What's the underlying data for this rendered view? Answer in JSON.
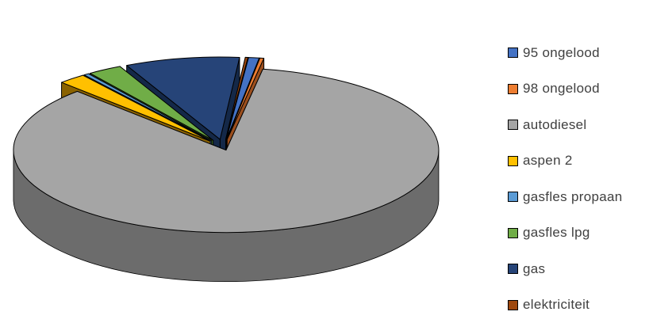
{
  "chart_data": {
    "type": "pie",
    "title": "",
    "three_d": true,
    "exploded": true,
    "legend_position": "right",
    "categories": [
      "95 ongelood",
      "98 ongelood",
      "autodiesel",
      "aspen 2",
      "gasfles propaan",
      "gasfles lpg",
      "gas",
      "elektriciteit"
    ],
    "values": [
      0.8,
      0.3,
      84.9,
      2.1,
      0.4,
      2.6,
      8.7,
      0.2
    ],
    "units": "percent (estimated)",
    "colors": [
      "#4472c4",
      "#ed7d31",
      "#a5a5a5",
      "#ffc000",
      "#5b9bd5",
      "#70ad47",
      "#264478",
      "#9e480e"
    ],
    "side_colors": [
      "#2a4a88",
      "#9c4f1e",
      "#6c6c6c",
      "#8a6200",
      "#3a6b9a",
      "#3e6f22",
      "#142848",
      "#5a2808"
    ]
  }
}
